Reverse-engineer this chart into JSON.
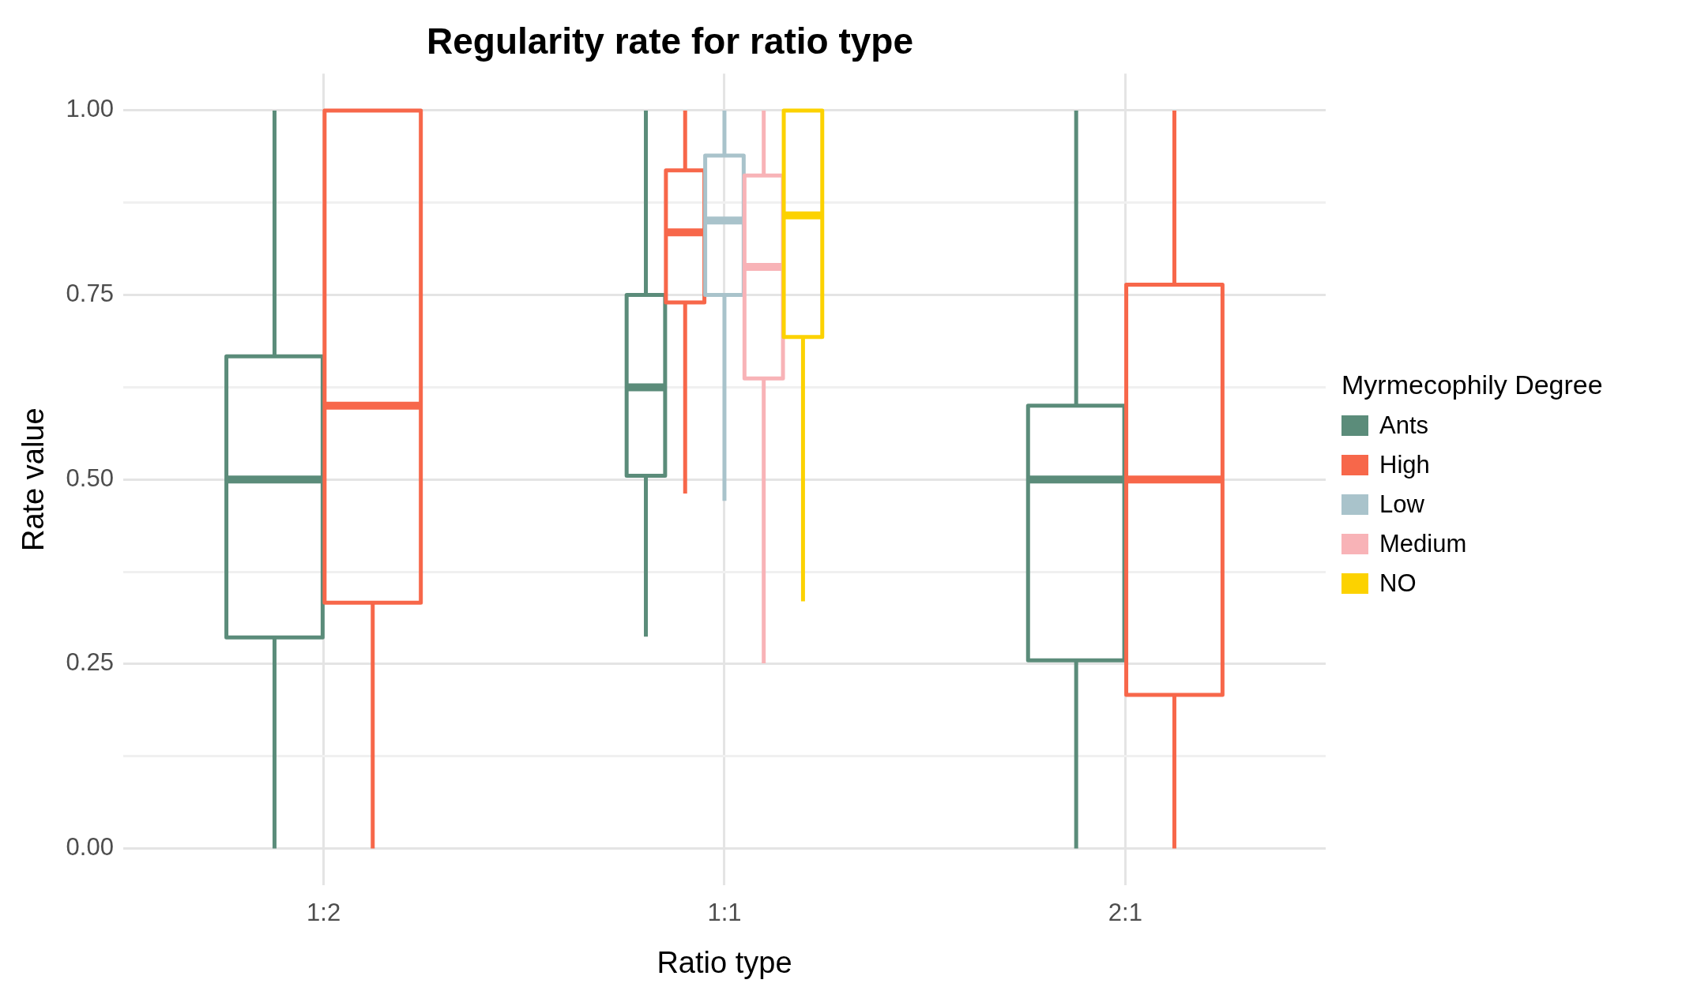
{
  "chart_data": {
    "type": "box",
    "title": "Regularity rate for ratio type",
    "xlabel": "Ratio type",
    "ylabel": "Rate value",
    "legend_title": "Myrmecophily Degree",
    "legend": "right",
    "grid": true,
    "categories": [
      "1:2",
      "1:1",
      "2:1"
    ],
    "ylim": [
      -0.05,
      1.05
    ],
    "yticks": [
      {
        "value": 0,
        "label": "0.00"
      },
      {
        "value": 0.125,
        "label": null
      },
      0.25,
      {
        "value": 0.375,
        "label": null
      },
      {
        "value": 0.5,
        "label": "0.50"
      },
      {
        "value": 0.625,
        "label": null
      },
      0.75,
      {
        "value": 0.875,
        "label": null
      },
      {
        "value": 1,
        "label": "1.00"
      }
    ],
    "series": [
      {
        "name": "Ants",
        "color": "#5b8c7a",
        "boxes": [
          {
            "low": 0,
            "q1": 0.286,
            "median": 0.5,
            "q3": 0.667,
            "high": 1
          },
          {
            "low": 0.287,
            "q1": 0.505,
            "median": 0.625,
            "q3": 0.75,
            "high": 1
          },
          {
            "low": 0,
            "q1": 0.255,
            "median": 0.5,
            "q3": 0.6,
            "high": 1
          }
        ]
      },
      {
        "name": "High",
        "color": "#f7674a",
        "boxes": [
          {
            "low": 0,
            "q1": 0.333,
            "median": 0.6,
            "q3": 1,
            "high": 1
          },
          {
            "low": 0.481,
            "q1": 0.74,
            "median": 0.835,
            "q3": 0.919,
            "high": 1
          },
          {
            "low": 0,
            "q1": 0.208,
            "median": 0.5,
            "q3": 0.764,
            "high": 1
          }
        ]
      },
      {
        "name": "Low",
        "color": "#a9c3cb",
        "boxes": [
          null,
          {
            "low": 0.471,
            "q1": 0.75,
            "median": 0.851,
            "q3": 0.939,
            "high": 1
          },
          null
        ]
      },
      {
        "name": "Medium",
        "color": "#f8b3b7",
        "boxes": [
          null,
          {
            "low": 0.251,
            "q1": 0.637,
            "median": 0.788,
            "q3": 0.912,
            "high": 1
          },
          null
        ]
      },
      {
        "name": "NO",
        "color": "#fcd200",
        "boxes": [
          null,
          {
            "low": 0.335,
            "q1": 0.693,
            "median": 0.858,
            "q3": 1,
            "high": 1
          },
          null
        ]
      }
    ]
  }
}
